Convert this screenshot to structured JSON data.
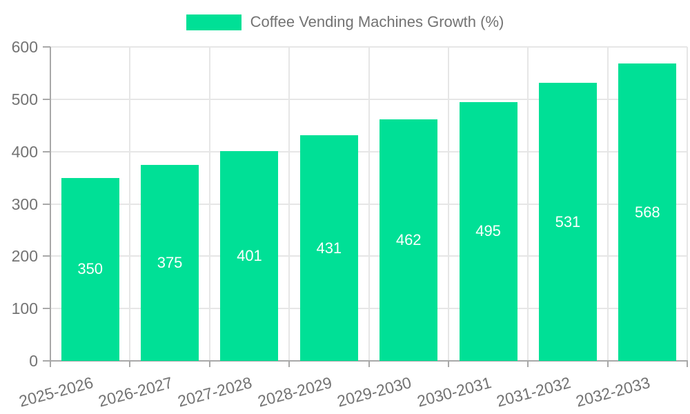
{
  "legend": {
    "label": "Coffee Vending Machines Growth (%)"
  },
  "colors": {
    "bar": "#00E096",
    "axis_line": "#a8a8a8",
    "gridline": "#e6e6e6",
    "tick_label": "#737373",
    "value_label": "#ffffff",
    "legend_text": "#737373",
    "background": "#ffffff"
  },
  "chart_data": {
    "type": "bar",
    "title": "Coffee Vending Machines Growth (%)",
    "categories": [
      "2025-2026",
      "2026-2027",
      "2027-2028",
      "2028-2029",
      "2029-2030",
      "2030-2031",
      "2031-2032",
      "2032-2033"
    ],
    "values": [
      350,
      375,
      401,
      431,
      462,
      495,
      531,
      568
    ],
    "xlabel": "",
    "ylabel": "",
    "ylim": [
      0,
      600
    ],
    "yticks": [
      0,
      100,
      200,
      300,
      400,
      500,
      600
    ],
    "grid": true,
    "legend_position": "top",
    "value_labels": "inside-center",
    "x_label_rotation_deg": -15
  }
}
